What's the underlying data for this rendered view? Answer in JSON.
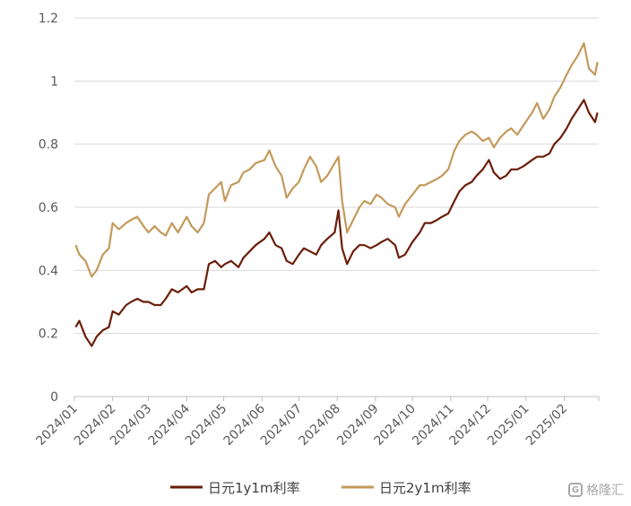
{
  "chart_data": {
    "type": "line",
    "title": "",
    "xlabel": "",
    "ylabel": "",
    "ylim": [
      0,
      1.2
    ],
    "y_ticks": [
      "0",
      "0.2",
      "0.4",
      "0.6",
      "0.8",
      "1",
      "1.2"
    ],
    "x_ticks": [
      "2024/01",
      "2024/02",
      "2024/03",
      "2024/04",
      "2024/05",
      "2024/06",
      "2024/07",
      "2024/08",
      "2024/09",
      "2024/10",
      "2024/11",
      "2024/12",
      "2025/01",
      "2025/02"
    ],
    "grid": "horizontal",
    "legend": "bottom",
    "x": [
      "2024-01-02",
      "2024-01-05",
      "2024-01-10",
      "2024-01-15",
      "2024-01-19",
      "2024-01-24",
      "2024-01-29",
      "2024-02-01",
      "2024-02-06",
      "2024-02-12",
      "2024-02-16",
      "2024-02-21",
      "2024-02-26",
      "2024-03-01",
      "2024-03-06",
      "2024-03-11",
      "2024-03-15",
      "2024-03-20",
      "2024-03-25",
      "2024-04-01",
      "2024-04-05",
      "2024-04-10",
      "2024-04-15",
      "2024-04-19",
      "2024-04-24",
      "2024-04-29",
      "2024-05-02",
      "2024-05-07",
      "2024-05-13",
      "2024-05-17",
      "2024-05-22",
      "2024-05-27",
      "2024-06-03",
      "2024-06-07",
      "2024-06-12",
      "2024-06-17",
      "2024-06-21",
      "2024-06-26",
      "2024-07-01",
      "2024-07-05",
      "2024-07-10",
      "2024-07-15",
      "2024-07-19",
      "2024-07-24",
      "2024-07-30",
      "2024-08-02",
      "2024-08-05",
      "2024-08-09",
      "2024-08-14",
      "2024-08-19",
      "2024-08-23",
      "2024-08-28",
      "2024-09-02",
      "2024-09-06",
      "2024-09-11",
      "2024-09-17",
      "2024-09-20",
      "2024-09-25",
      "2024-10-01",
      "2024-10-07",
      "2024-10-11",
      "2024-10-16",
      "2024-10-21",
      "2024-10-25",
      "2024-10-30",
      "2024-11-04",
      "2024-11-08",
      "2024-11-13",
      "2024-11-18",
      "2024-11-22",
      "2024-11-27",
      "2024-12-02",
      "2024-12-06",
      "2024-12-11",
      "2024-12-16",
      "2024-12-20",
      "2024-12-25",
      "2024-12-30",
      "2025-01-06",
      "2025-01-10",
      "2025-01-15",
      "2025-01-20",
      "2025-01-24",
      "2025-01-29",
      "2025-02-03",
      "2025-02-07",
      "2025-02-12",
      "2025-02-17",
      "2025-02-21",
      "2025-02-26",
      "2025-02-28"
    ],
    "series": [
      {
        "name": "日元1y1m利率",
        "color": "#6b1e0a",
        "values": [
          0.22,
          0.24,
          0.19,
          0.16,
          0.19,
          0.21,
          0.22,
          0.27,
          0.26,
          0.29,
          0.3,
          0.31,
          0.3,
          0.3,
          0.29,
          0.29,
          0.31,
          0.34,
          0.33,
          0.35,
          0.33,
          0.34,
          0.34,
          0.42,
          0.43,
          0.41,
          0.42,
          0.43,
          0.41,
          0.44,
          0.46,
          0.48,
          0.5,
          0.52,
          0.48,
          0.47,
          0.43,
          0.42,
          0.45,
          0.47,
          0.46,
          0.45,
          0.48,
          0.5,
          0.52,
          0.59,
          0.47,
          0.42,
          0.46,
          0.48,
          0.48,
          0.47,
          0.48,
          0.49,
          0.5,
          0.48,
          0.44,
          0.45,
          0.49,
          0.52,
          0.55,
          0.55,
          0.56,
          0.57,
          0.58,
          0.62,
          0.65,
          0.67,
          0.68,
          0.7,
          0.72,
          0.75,
          0.71,
          0.69,
          0.7,
          0.72,
          0.72,
          0.73,
          0.75,
          0.76,
          0.76,
          0.77,
          0.8,
          0.82,
          0.85,
          0.88,
          0.91,
          0.94,
          0.9,
          0.87,
          0.9
        ]
      },
      {
        "name": "日元2y1m利率",
        "color": "#c49a5a",
        "values": [
          0.48,
          0.45,
          0.43,
          0.38,
          0.4,
          0.45,
          0.47,
          0.55,
          0.53,
          0.55,
          0.56,
          0.57,
          0.54,
          0.52,
          0.54,
          0.52,
          0.51,
          0.55,
          0.52,
          0.57,
          0.54,
          0.52,
          0.55,
          0.64,
          0.66,
          0.68,
          0.62,
          0.67,
          0.68,
          0.71,
          0.72,
          0.74,
          0.75,
          0.78,
          0.73,
          0.7,
          0.63,
          0.66,
          0.68,
          0.72,
          0.76,
          0.73,
          0.68,
          0.7,
          0.74,
          0.76,
          0.62,
          0.52,
          0.56,
          0.6,
          0.62,
          0.61,
          0.64,
          0.63,
          0.61,
          0.6,
          0.57,
          0.61,
          0.64,
          0.67,
          0.67,
          0.68,
          0.69,
          0.7,
          0.72,
          0.78,
          0.81,
          0.83,
          0.84,
          0.83,
          0.81,
          0.82,
          0.79,
          0.82,
          0.84,
          0.85,
          0.83,
          0.86,
          0.9,
          0.93,
          0.88,
          0.91,
          0.95,
          0.98,
          1.02,
          1.05,
          1.08,
          1.12,
          1.04,
          1.02,
          1.06
        ]
      }
    ]
  },
  "watermark": {
    "text": "格隆汇",
    "icon": "brand-icon"
  }
}
